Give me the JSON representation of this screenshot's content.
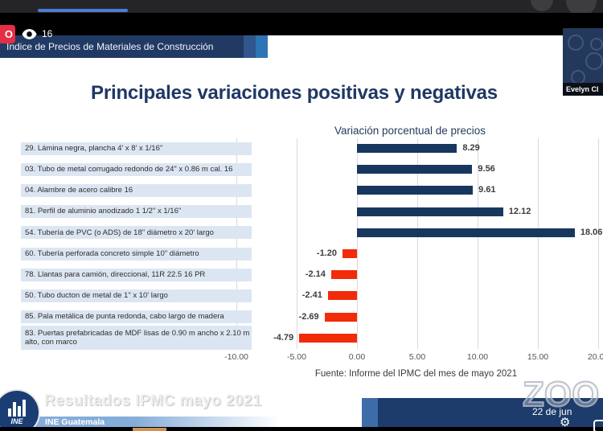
{
  "stream": {
    "live_badge": "O",
    "viewer_count": "16",
    "banner_title": "Índice de Precios de Materiales de Construcción",
    "participant_name": "Evelyn Cl",
    "date_label": "22 de jun",
    "watermark": "ZOO"
  },
  "slide": {
    "title": "Principales variaciones positivas y negativas",
    "source": "Fuente: Informe del IPMC del mes de mayo 2021",
    "footer_title": "Resultados IPMC mayo 2021",
    "footer_subtitle": "INE Guatemala",
    "logo_text": "INE"
  },
  "icons": {
    "settings_gear": "⚙"
  },
  "chart_data": {
    "type": "bar",
    "orientation": "horizontal",
    "title": "Variación porcentual de precios",
    "categories": [
      "29. Lámina negra, plancha 4' x 8' x 1/16\"",
      "03. Tubo de metal corrugado redondo de 24\" x 0.86 m cal. 16",
      "04. Alambre de acero calibre 16",
      "81. Perfil de aluminio anodizado 1 1/2\" x  1/16\"",
      "54. Tubería de PVC (o ADS) de 18\" diámetro x 20' largo",
      "60. Tubería perforada concreto simple 10\" diámetro",
      "78. Llantas para camión, direccional, 11R 22.5 16 PR",
      "50. Tubo ducton de metal de 1\" x 10' largo",
      "85. Pala metálica de punta redonda, cabo largo de madera",
      "83. Puertas prefabricadas de MDF lisas de 0.90 m ancho x 2.10 m alto, con marco"
    ],
    "values": [
      8.29,
      9.56,
      9.61,
      12.12,
      18.06,
      -1.2,
      -2.14,
      -2.41,
      -2.69,
      -4.79
    ],
    "value_labels": [
      "8.29",
      "9.56",
      "9.61",
      "12.12",
      "18.06",
      "-1.20",
      "-2.14",
      "-2.41",
      "-2.69",
      "-4.79"
    ],
    "x_ticks": [
      "-10.00",
      "-5.00",
      "0.00",
      "5.00",
      "10.00",
      "15.00",
      "20.00"
    ],
    "x_tick_values": [
      -10,
      -5,
      0,
      5,
      10,
      15,
      20
    ],
    "xlim": [
      -10.6,
      20.4
    ],
    "grid": true,
    "legend": false,
    "positive_color": "#17375e",
    "negative_color": "#f22b08"
  },
  "colors": {
    "title_navy": "#1f3864",
    "banner_navy": "#203a64",
    "banner_accent": "#2e75b6",
    "live_red": "#e62e45",
    "band_blue": "#dce6f2",
    "footer_blue": "#85add9",
    "date_bar_navy": "#1d3c6b",
    "thumb_navy": "#24385c",
    "grid_gray": "#d9d9d9"
  }
}
